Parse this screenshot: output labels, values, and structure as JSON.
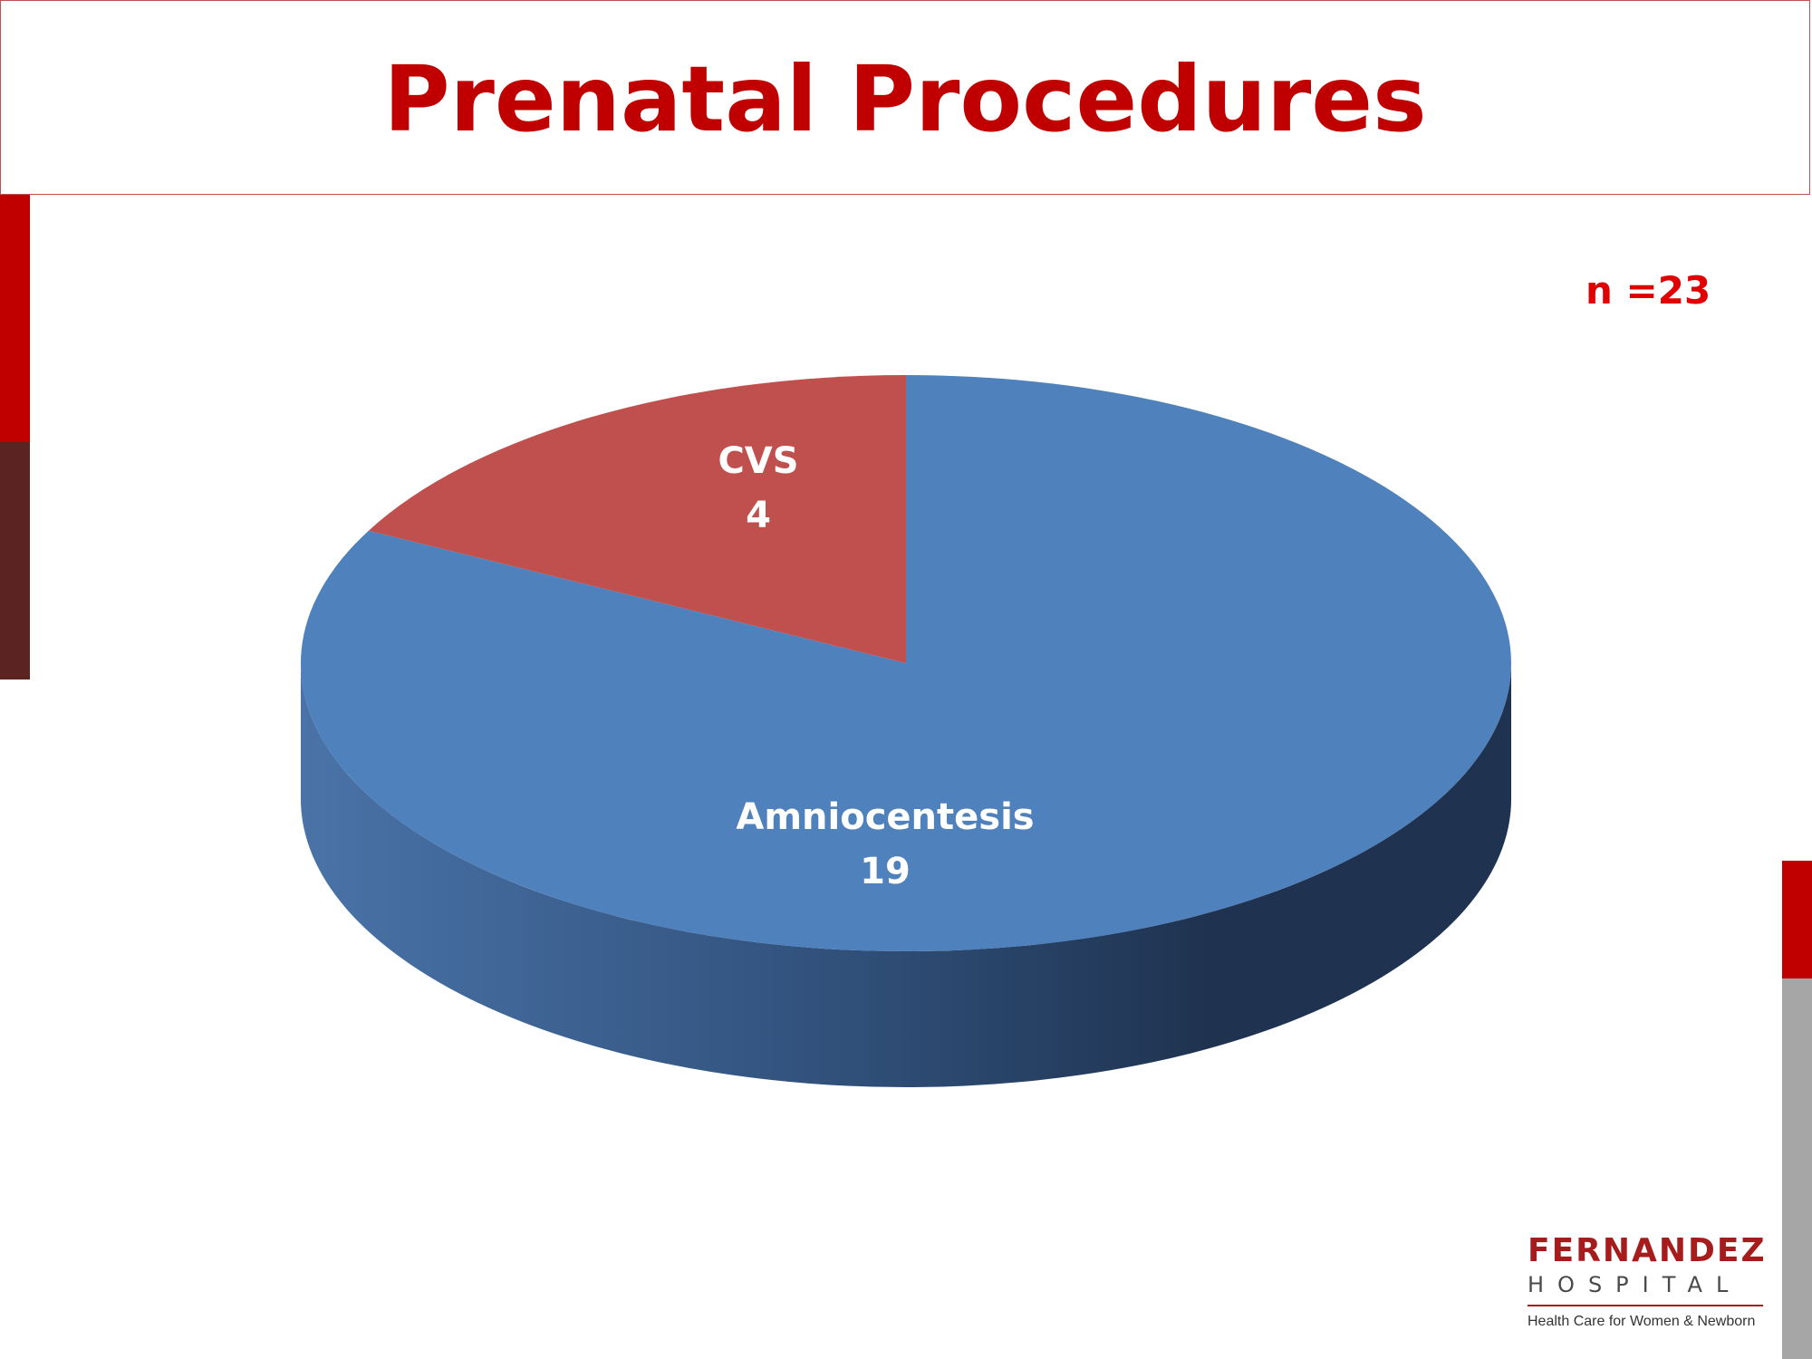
{
  "slide": {
    "title": "Prenatal Procedures",
    "sample_size": "n =23"
  },
  "logo": {
    "name": "FERNANDEZ",
    "subtitle": "HOSPITAL",
    "tagline": "Health Care for Women & Newborn"
  },
  "colors": {
    "accent_red": "#c00000",
    "dark_red": "#5c2323",
    "gray": "#a6a6a6",
    "amnio_blue": "#4f81bd",
    "cvs_red": "#c0504d"
  },
  "chart_data": {
    "type": "pie",
    "style": "3d",
    "title": "",
    "slices": [
      {
        "label": "Amniocentesis",
        "value": 19,
        "color": "#4f81bd"
      },
      {
        "label": "CVS",
        "value": 4,
        "color": "#c0504d"
      }
    ]
  }
}
